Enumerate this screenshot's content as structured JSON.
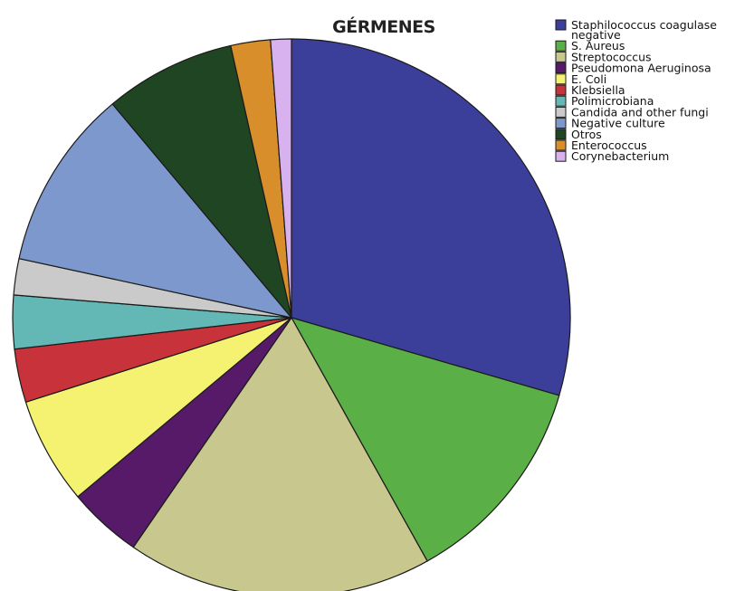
{
  "chart_data": {
    "type": "pie",
    "title": "GÉRMENES",
    "legend_position": "top-right",
    "categories": [
      "Staphilococcus coagulase negative",
      "S. Aureus",
      "Streptococcus",
      "Pseudomona Aeruginosa",
      "E. Coli",
      "Klebsiella",
      "Polimicrobiana",
      "Candida and other fungi",
      "Negative culture",
      "Otros",
      "Enterococcus",
      "Corynebacterium"
    ],
    "legend_lines": [
      [
        "Staphilococcus coagulase",
        "negative"
      ],
      [
        "S. Aureus"
      ],
      [
        "Streptococcus"
      ],
      [
        "Pseudomona Aeruginosa"
      ],
      [
        "E. Coli"
      ],
      [
        "Klebsiella"
      ],
      [
        "Polimicrobiana"
      ],
      [
        "Candida and other fungi"
      ],
      [
        "Negative culture"
      ],
      [
        "Otros"
      ],
      [
        "Enterococcus"
      ],
      [
        "Corynebacterium"
      ]
    ],
    "values": [
      29.5,
      12.4,
      17.7,
      4.3,
      6.2,
      3.1,
      3.1,
      2.1,
      10.5,
      7.6,
      2.3,
      1.2
    ],
    "colors": [
      "#3b3f9a",
      "#5aaf46",
      "#c8c78d",
      "#561a68",
      "#f6f271",
      "#c8323a",
      "#63b8b6",
      "#cacaca",
      "#7d98cc",
      "#1f4522",
      "#d88e2b",
      "#d8b2ef"
    ],
    "start_angle_deg": 0,
    "direction": "clockwise"
  }
}
